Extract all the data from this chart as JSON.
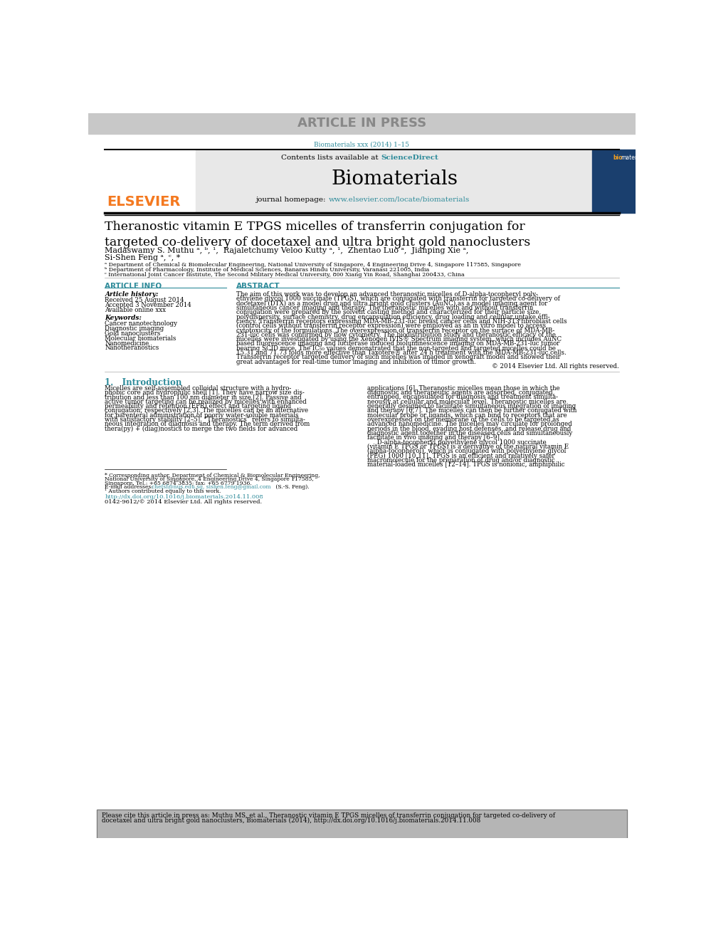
{
  "article_in_press_text": "ARTICLE IN PRESS",
  "article_in_press_bg": "#c8c8c8",
  "article_in_press_text_color": "#888888",
  "journal_ref": "Biomaterials xxx (2014) 1–15",
  "journal_ref_color": "#2e8b9a",
  "sciencedirect_color": "#2e8b9a",
  "journal_name": "Biomaterials",
  "journal_homepage_url": "www.elsevier.com/locate/biomaterials",
  "journal_homepage_color": "#2e8b9a",
  "elsevier_color": "#f47920",
  "header_bg": "#e8e8e8",
  "title": "Theranostic vitamin E TPGS micelles of transferrin conjugation for\ntargeted co-delivery of docetaxel and ultra bright gold nanoclusters",
  "authors_line1": "Madaswamy S. Muthu ᵃ, ᵇ, ¹,  Rajaletchumy Veloo Kutty ᵃ, ¹,  Zhentao Luo ᵃ,  Jianping Xie ᵃ,",
  "authors_line2": "Si-Shen Feng ᵃ, ᶜ, *",
  "affil_a": "ᵃ Department of Chemical & Biomolecular Engineering, National University of Singapore, 4 Engineering Drive 4, Singapore 117585, Singapore",
  "affil_b": "ᵇ Department of Pharmacology, Institute of Medical Sciences, Banaras Hindu University, Varanasi 221005, India",
  "affil_c": "ᶜ International Joint Cancer Institute, The Second Military Medical University, 800 Xiang Yin Road, Shanghai 200433, China",
  "article_info_title": "ARTICLE INFO",
  "article_history_title": "Article history:",
  "received": "Received 25 August 2014",
  "accepted": "Accepted 3 November 2014",
  "available": "Available online xxx",
  "keywords_title": "Keywords:",
  "keywords": [
    "Cancer nanotechnology",
    "Diagnostic imaging",
    "Gold nanoclusters",
    "Molecular biomaterials",
    "Nanomedicine",
    "Nanotheranostics"
  ],
  "abstract_title": "ABSTRACT",
  "abstract_text": "The aim of this work was to develop an advanced theranostic micelles of D-alpha-tocopheryl poly-\nethylene glycol 1000 succinate (TPGS), which are conjugated with transferrin for targeted co-delivery of\ndocetaxel (DTX) as a model drug and ultra bright gold clusters (AuNC) as a model imaging agent for\nsimultaneous cancer imaging and therapy. The theranostic micelles with and without transferrin\nconjugation were prepared by the solvent casting method and characterized for their particle size,\npolydispersity, surface chemistry, drug encapsulation efficiency, drug loading and cellular uptake effi-\nciency. Transferrin receptors expressing MDA-MB-231-luc breast cancer cells and NIH-3T3 fibroblast cells\n(control cells without transferrin receptor expression) were employed as an in vitro model to access\ncytotoxicity of the formulations. The overexpression of transferrin receptor on the surface of MDA-MB-\n231-luc cells was confirmed by flow cytometry. The biodistribution study and theranostic efficacy of the\nmicelles were investigated by using the Xenogen IVIS® Spectrum imaging system, which includes AuNC\nbased fluorescence imaging and luciferase induced bioluminescence imaging on MDA-MB-231-luc tumor\nbearing SCID mice. The IC₅₀ values demonstrated that the non-targeted and targeted micelles could be\n15.31 and 71.73 folds more effective than Taxotere® after 24 h treatment with the MDA-MB-231-luc cells.\nTransferrin receptor targeted delivery of such micelles was imaged in xenograft model and showed their\ngreat advantages for real-time tumor imaging and inhibition of tumor growth.",
  "copyright": "© 2014 Elsevier Ltd. All rights reserved.",
  "intro_title": "1.   Introduction",
  "intro_text_left": [
    "Micelles are self-assembled colloidal structure with a hydro-",
    "phobic core and hydrophilic shell [1]. They have narrow size dis-",
    "tribution and less than 100 nm diameter in size [2]. Passive and",
    "active tumor targeting can be realized by micelles with enhanced",
    "permeability and retention (EPR) effect and targeting ligand",
    "conjugation, respectively [2,3]. The micelles can be an alternative",
    "for parenteral administration of poorly water-soluble materials",
    "with satisfactory stability [2–5]. “Theranostics” refers to simulta-",
    "neous integration of diagnosis and therapy. The term derived from",
    "thera(py) + (diag)nostics to merge the two fields for advanced"
  ],
  "intro_text_right": [
    "applications [6]. Theranostic micelles mean those in which the",
    "diagnostic and therapeutic agents are adsorbed, conjugated,",
    "entrapped, encapsulated for diagnosis and treatment simulta-",
    "neously at cellular and molecular level. Theranostic micelles are",
    "generally designed to facilitate simultaneous integration of imaging",
    "and therapy [6,7]. The micelles can then be further conjugated with",
    "molecular probe or ligands, which can bind to receptors that are",
    "overexpressed on the membrane of the cells to be targeted as",
    "advanced nanomedicine. The micelles may circulate for prolonged",
    "periods in the blood, evading host defenses, and release drug and",
    "diagnostic agent together in the diseased cells and simultaneously",
    "facilitate in vivo imaging and therapy [6–9].",
    "     D-alpha-tocopheryl polyethylene glycol 1000 succinate",
    "(vitamin E TPGS or TPGS) is a derivative of the natural vitamin E",
    "(alpha-tocopherol), which is conjugated with polyethylene glycol",
    "(PEG) 1000 [10,11]. TPGS is an efficient and relatively safer",
    "macromolecule for the preparation of drug and/or diagnostic",
    "material-loaded micelles [12–14]. TPGS is nonionic, amphiphilic"
  ],
  "footnote_star_lines": [
    "* Corresponding author. Department of Chemical & Biomolecular Engineering,",
    "National University of Singapore, 4 Engineering Drive 4, Singapore 117585,",
    "Singapore. Tel.: +65 6874 3835; fax: +65 6779 1936."
  ],
  "footnote_email": "E-mail addresses: chefsf@nus.edu.sg, sishen.feng@gmail.com (S.-S. Feng).",
  "footnote_email_color": "#2e8b9a",
  "footnote_1": "¹ Authors contributed equally to this work.",
  "doi_text": "http://dx.doi.org/10.1016/j.biomaterials.2014.11.008",
  "doi_color": "#2e8b9a",
  "issn_text": "0142-9612/© 2014 Elsevier Ltd. All rights reserved.",
  "cite_text_line1": "Please cite this article in press as: Muthu MS, et al., Theranostic vitamin E TPGS micelles of transferrin conjugation for targeted co-delivery of",
  "cite_text_line2": "docetaxel and ultra bright gold nanoclusters, Biomaterials (2014), http://dx.doi.org/10.1016/j.biomaterials.2014.11.008",
  "cite_bg": "#b5b5b5",
  "bg_color": "#ffffff",
  "section_divider_color": "#2e8b9a"
}
